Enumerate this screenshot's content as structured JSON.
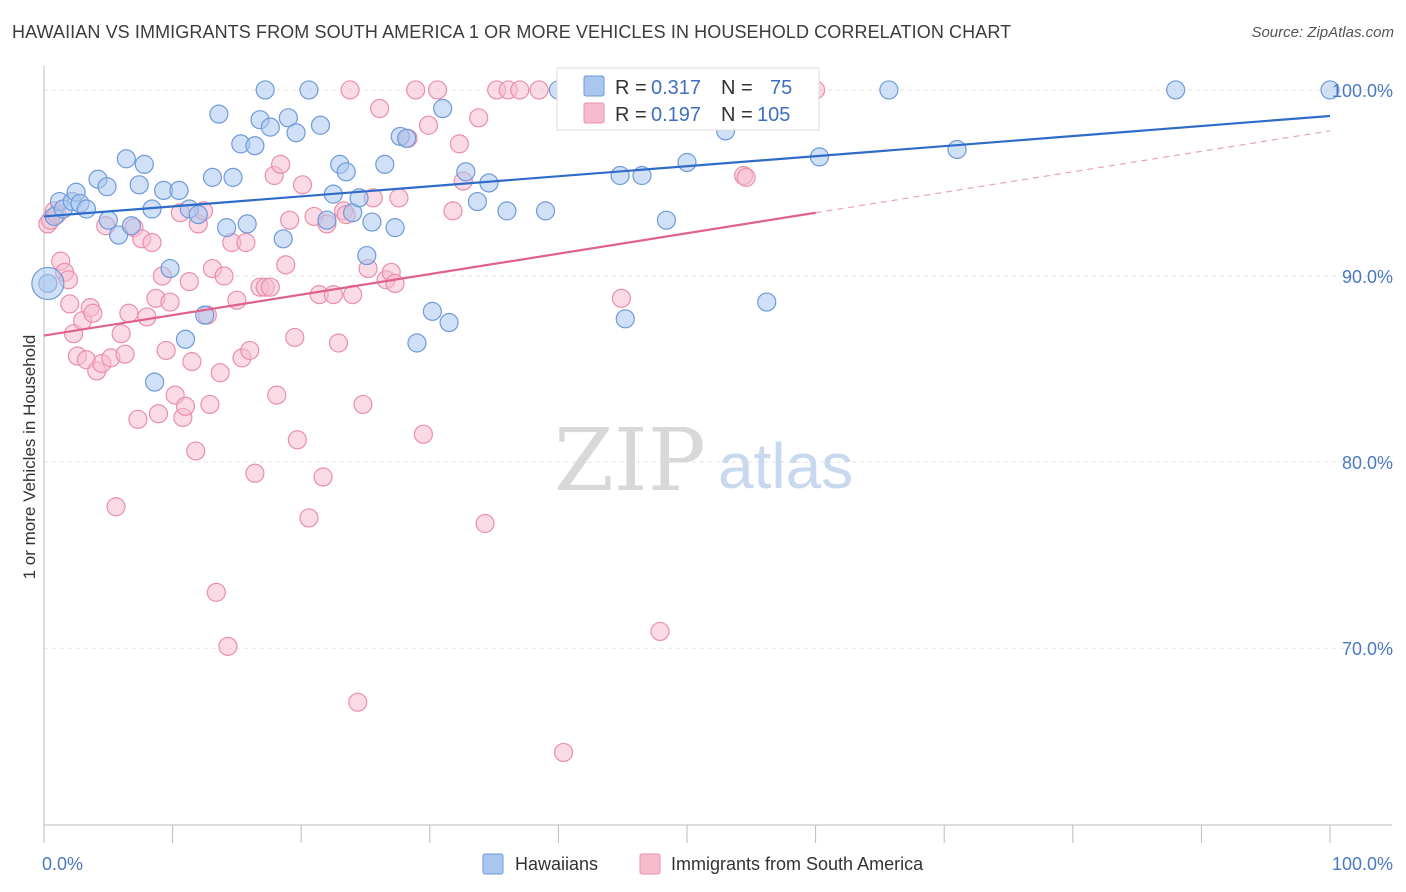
{
  "title": "HAWAIIAN VS IMMIGRANTS FROM SOUTH AMERICA 1 OR MORE VEHICLES IN HOUSEHOLD CORRELATION CHART",
  "source": "Source: ZipAtlas.com",
  "watermark": {
    "zip": "ZIP",
    "atlas": "atlas"
  },
  "colors": {
    "blue_fill": "#a9c6ee",
    "blue_stroke": "#6f9ad8",
    "blue_line": "#2f6cc9",
    "pink_fill": "#f6bccd",
    "pink_stroke": "#ea8fab",
    "pink_line": "#e0628c",
    "tick": "#4a78c2"
  },
  "legend": {
    "r_label": "R =",
    "n_label": "N =",
    "rows": [
      {
        "r": "0.317",
        "n": "75"
      },
      {
        "r": "0.197",
        "n": "105"
      }
    ]
  },
  "chart_data": {
    "type": "scatter",
    "title": "HAWAIIAN VS IMMIGRANTS FROM SOUTH AMERICA 1 OR MORE VEHICLES IN HOUSEHOLD CORRELATION CHART",
    "xlabel": "",
    "ylabel": "1 or more Vehicles in Household",
    "xlim": [
      0,
      100
    ],
    "ylim": [
      60.5,
      101.5
    ],
    "x_tick_labels": [
      "0.0%",
      "100.0%"
    ],
    "y_ticks": [
      70,
      80,
      90,
      100
    ],
    "y_tick_labels": [
      "70.0%",
      "80.0%",
      "90.0%",
      "100.0%"
    ],
    "grid": true,
    "legend_position": "top-center",
    "series": [
      {
        "name": "Hawaiians",
        "r": 0.317,
        "n": 75,
        "trend": {
          "x": [
            0,
            100
          ],
          "y": [
            93.2,
            98.6
          ]
        },
        "points": [
          [
            0.3,
            89.6
          ],
          [
            0.8,
            93.2
          ],
          [
            1.2,
            94.0
          ],
          [
            1.5,
            93.6
          ],
          [
            2.2,
            94.0
          ],
          [
            2.5,
            94.5
          ],
          [
            2.8,
            93.9
          ],
          [
            3.3,
            93.6
          ],
          [
            4.2,
            95.2
          ],
          [
            4.9,
            94.8
          ],
          [
            5.0,
            93.0
          ],
          [
            5.8,
            92.2
          ],
          [
            6.4,
            96.3
          ],
          [
            6.8,
            92.7
          ],
          [
            7.4,
            94.9
          ],
          [
            7.8,
            96.0
          ],
          [
            8.4,
            93.6
          ],
          [
            8.6,
            84.3
          ],
          [
            9.3,
            94.6
          ],
          [
            9.8,
            90.4
          ],
          [
            10.5,
            94.6
          ],
          [
            11.0,
            86.6
          ],
          [
            11.3,
            93.6
          ],
          [
            12.0,
            93.3
          ],
          [
            12.5,
            87.9
          ],
          [
            13.1,
            95.3
          ],
          [
            13.6,
            98.7
          ],
          [
            14.2,
            92.6
          ],
          [
            14.7,
            95.3
          ],
          [
            15.3,
            97.1
          ],
          [
            15.8,
            92.8
          ],
          [
            16.4,
            97.0
          ],
          [
            16.8,
            98.4
          ],
          [
            17.2,
            100.0
          ],
          [
            17.6,
            98.0
          ],
          [
            18.6,
            92.0
          ],
          [
            19.0,
            98.5
          ],
          [
            19.6,
            97.7
          ],
          [
            20.6,
            100.0
          ],
          [
            21.5,
            98.1
          ],
          [
            22.0,
            93.0
          ],
          [
            22.5,
            94.4
          ],
          [
            23.0,
            96.0
          ],
          [
            23.5,
            95.6
          ],
          [
            24.0,
            93.4
          ],
          [
            24.5,
            94.2
          ],
          [
            25.1,
            91.1
          ],
          [
            25.5,
            92.9
          ],
          [
            26.5,
            96.0
          ],
          [
            27.3,
            92.6
          ],
          [
            27.7,
            97.5
          ],
          [
            28.2,
            97.4
          ],
          [
            29.0,
            86.4
          ],
          [
            30.2,
            88.1
          ],
          [
            31.0,
            99.0
          ],
          [
            31.5,
            87.5
          ],
          [
            32.8,
            95.6
          ],
          [
            33.7,
            94.0
          ],
          [
            34.6,
            95.0
          ],
          [
            36.0,
            93.5
          ],
          [
            39.0,
            93.5
          ],
          [
            40.0,
            100.0
          ],
          [
            44.8,
            95.4
          ],
          [
            45.2,
            87.7
          ],
          [
            46.5,
            95.4
          ],
          [
            48.4,
            93.0
          ],
          [
            50.0,
            96.1
          ],
          [
            53.0,
            97.8
          ],
          [
            56.2,
            88.6
          ],
          [
            60.3,
            96.4
          ],
          [
            65.7,
            100.0
          ],
          [
            71.0,
            96.8
          ],
          [
            88.0,
            100.0
          ],
          [
            100.0,
            100.0
          ]
        ]
      },
      {
        "name": "Immigrants from South America",
        "r": 0.197,
        "n": 105,
        "trend": {
          "x": [
            0,
            60
          ],
          "y": [
            86.8,
            93.4
          ],
          "dashed_x": [
            60,
            100
          ],
          "dashed_y": [
            93.4,
            97.8
          ]
        },
        "points": [
          [
            0.3,
            92.8
          ],
          [
            0.5,
            93.0
          ],
          [
            0.8,
            93.5
          ],
          [
            1.0,
            93.3
          ],
          [
            1.3,
            90.8
          ],
          [
            1.6,
            90.2
          ],
          [
            1.9,
            89.8
          ],
          [
            2.0,
            88.5
          ],
          [
            2.3,
            86.9
          ],
          [
            2.6,
            85.7
          ],
          [
            3.0,
            87.6
          ],
          [
            3.3,
            85.5
          ],
          [
            3.6,
            88.3
          ],
          [
            3.8,
            88.0
          ],
          [
            4.1,
            84.9
          ],
          [
            4.5,
            85.3
          ],
          [
            4.8,
            92.7
          ],
          [
            5.2,
            85.6
          ],
          [
            5.6,
            77.6
          ],
          [
            6.0,
            86.9
          ],
          [
            6.3,
            85.8
          ],
          [
            6.6,
            88.0
          ],
          [
            7.0,
            92.6
          ],
          [
            7.3,
            82.3
          ],
          [
            7.6,
            92.0
          ],
          [
            8.0,
            87.8
          ],
          [
            8.4,
            91.8
          ],
          [
            8.7,
            88.8
          ],
          [
            8.9,
            82.6
          ],
          [
            9.2,
            90.0
          ],
          [
            9.5,
            86.0
          ],
          [
            9.8,
            88.6
          ],
          [
            10.2,
            83.6
          ],
          [
            10.6,
            93.4
          ],
          [
            10.8,
            82.4
          ],
          [
            11.0,
            83.0
          ],
          [
            11.3,
            89.7
          ],
          [
            11.5,
            85.4
          ],
          [
            11.8,
            80.6
          ],
          [
            12.0,
            92.8
          ],
          [
            12.4,
            93.5
          ],
          [
            12.7,
            87.9
          ],
          [
            12.9,
            83.1
          ],
          [
            13.1,
            90.4
          ],
          [
            13.4,
            73.0
          ],
          [
            13.7,
            84.8
          ],
          [
            14.0,
            90.0
          ],
          [
            14.3,
            70.1
          ],
          [
            14.6,
            91.8
          ],
          [
            15.0,
            88.7
          ],
          [
            15.4,
            85.6
          ],
          [
            15.7,
            91.8
          ],
          [
            16.0,
            86.0
          ],
          [
            16.4,
            79.4
          ],
          [
            16.8,
            89.4
          ],
          [
            17.2,
            89.4
          ],
          [
            17.6,
            89.4
          ],
          [
            17.9,
            95.4
          ],
          [
            18.1,
            83.6
          ],
          [
            18.4,
            96.0
          ],
          [
            18.8,
            90.6
          ],
          [
            19.1,
            93.0
          ],
          [
            19.5,
            86.7
          ],
          [
            19.7,
            81.2
          ],
          [
            20.1,
            94.9
          ],
          [
            20.6,
            77.0
          ],
          [
            21.0,
            93.2
          ],
          [
            21.4,
            89.0
          ],
          [
            21.7,
            79.2
          ],
          [
            22.0,
            92.8
          ],
          [
            22.5,
            89.0
          ],
          [
            22.9,
            86.4
          ],
          [
            23.3,
            93.5
          ],
          [
            23.5,
            93.3
          ],
          [
            23.8,
            100.0
          ],
          [
            24.0,
            89.0
          ],
          [
            24.4,
            67.1
          ],
          [
            24.8,
            83.1
          ],
          [
            25.2,
            90.4
          ],
          [
            25.6,
            94.2
          ],
          [
            26.1,
            99.0
          ],
          [
            26.6,
            89.8
          ],
          [
            27.0,
            90.2
          ],
          [
            27.3,
            89.6
          ],
          [
            27.6,
            94.2
          ],
          [
            28.3,
            97.4
          ],
          [
            28.9,
            100.0
          ],
          [
            29.5,
            81.5
          ],
          [
            29.9,
            98.1
          ],
          [
            30.6,
            100.0
          ],
          [
            31.8,
            93.5
          ],
          [
            32.3,
            97.1
          ],
          [
            32.6,
            95.1
          ],
          [
            33.8,
            98.5
          ],
          [
            34.3,
            76.7
          ],
          [
            35.2,
            100.0
          ],
          [
            36.1,
            100.0
          ],
          [
            37.0,
            100.0
          ],
          [
            38.5,
            100.0
          ],
          [
            40.4,
            64.4
          ],
          [
            42.3,
            100.0
          ],
          [
            44.9,
            88.8
          ],
          [
            47.9,
            70.9
          ],
          [
            54.4,
            95.4
          ],
          [
            54.6,
            95.3
          ],
          [
            60.0,
            100.0
          ]
        ]
      }
    ]
  }
}
